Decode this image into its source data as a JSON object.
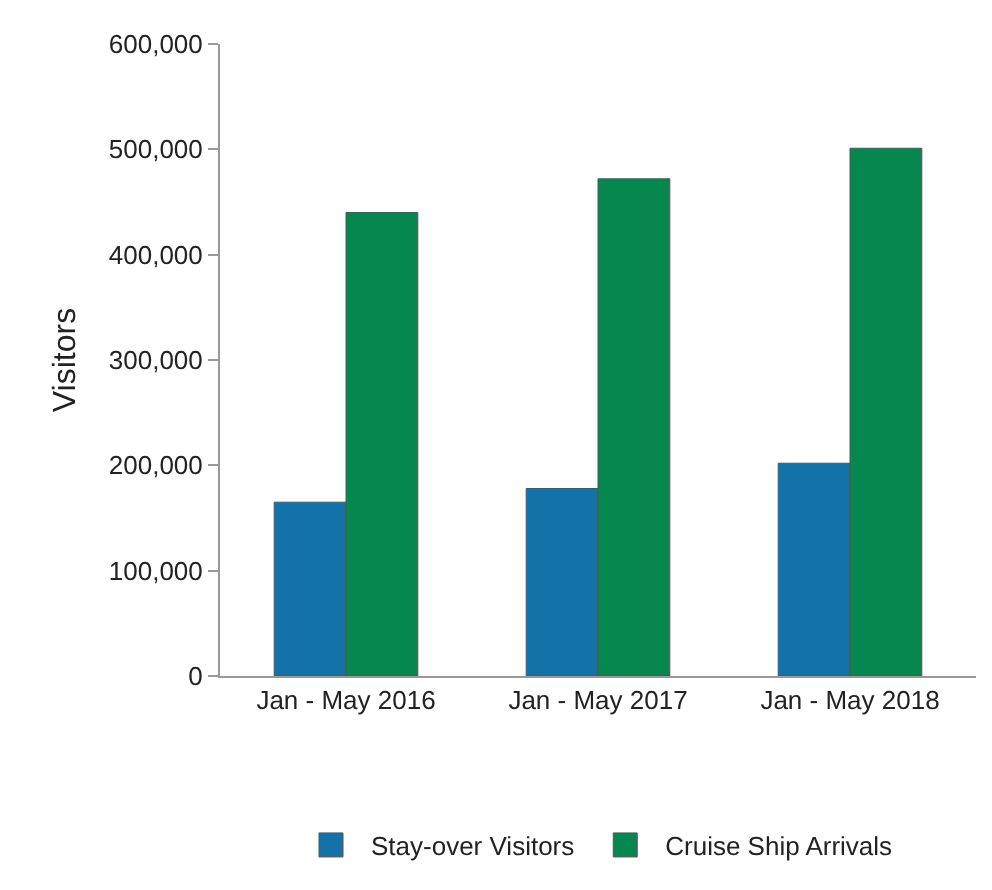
{
  "chart_data": {
    "type": "bar",
    "ylabel": "Visitors",
    "categories": [
      "Jan - May 2016",
      "Jan - May 2017",
      "Jan - May 2018"
    ],
    "series": [
      {
        "name": "Stay-over Visitors",
        "color": "#1372a8",
        "values": [
          165000,
          178000,
          202000
        ]
      },
      {
        "name": "Cruise Ship Arrivals",
        "color": "#06874f",
        "values": [
          440000,
          472000,
          501000
        ]
      }
    ],
    "ylim": [
      0,
      600000
    ],
    "yticks": [
      {
        "value": 0,
        "label": "0"
      },
      {
        "value": 100000,
        "label": "100,000"
      },
      {
        "value": 200000,
        "label": "200,000"
      },
      {
        "value": 300000,
        "label": "300,000"
      },
      {
        "value": 400000,
        "label": "400,000"
      },
      {
        "value": 500000,
        "label": "500,000"
      },
      {
        "value": 600000,
        "label": "600,000"
      }
    ],
    "grid": false,
    "legend": "bottom"
  }
}
